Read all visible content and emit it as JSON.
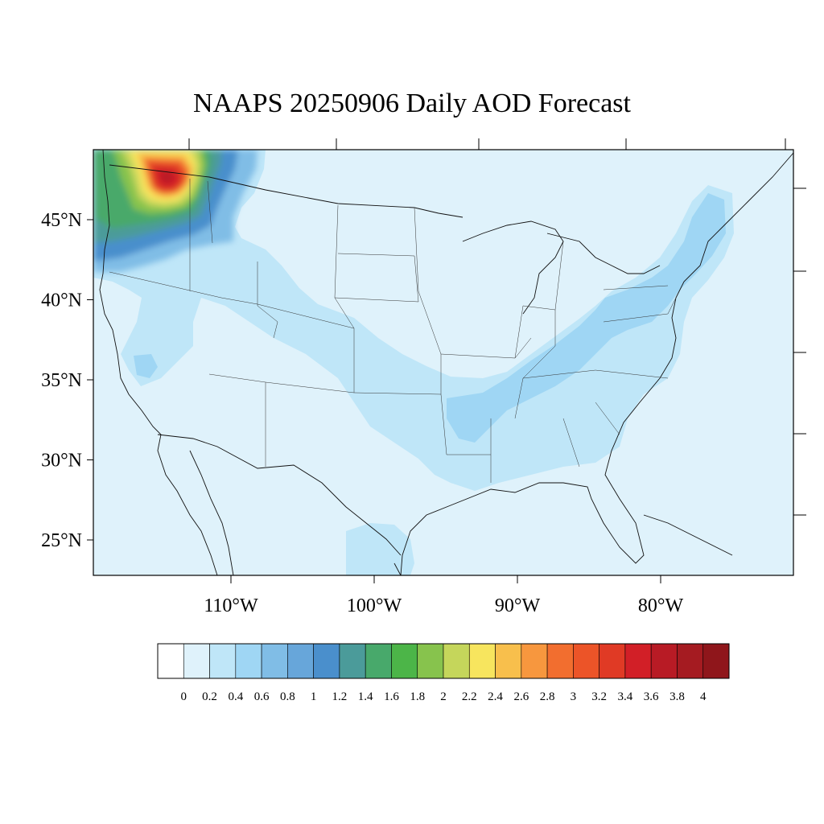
{
  "title": "NAAPS 20250906 Daily AOD Forecast",
  "map": {
    "extent": {
      "lon_min": -125.0,
      "lon_max": -76.0,
      "lat_min": 22.5,
      "lat_max": 49.5
    },
    "background_color": "#dff2fb",
    "lat_ticks": [
      {
        "value": 45,
        "label": "45°N"
      },
      {
        "value": 40,
        "label": "40°N"
      },
      {
        "value": 35,
        "label": "35°N"
      },
      {
        "value": 30,
        "label": "30°N"
      },
      {
        "value": 25,
        "label": "25°N"
      }
    ],
    "lon_ticks": [
      {
        "value": -110,
        "label": "110°W"
      },
      {
        "value": -100,
        "label": "100°W"
      },
      {
        "value": -90,
        "label": "90°W"
      },
      {
        "value": -80,
        "label": "80°W"
      }
    ],
    "smoke_plume_center": {
      "lat": 47.5,
      "lon": -116.5,
      "peak_aod": 3.8
    }
  },
  "colorbar": {
    "labels": [
      "0",
      "0.2",
      "0.4",
      "0.6",
      "0.8",
      "1",
      "1.2",
      "1.4",
      "1.6",
      "1.8",
      "2",
      "2.2",
      "2.4",
      "2.6",
      "2.8",
      "3",
      "3.2",
      "3.4",
      "3.6",
      "3.8",
      "4"
    ],
    "colors": [
      "#ffffff",
      "#dff2fb",
      "#bfe6f8",
      "#9fd6f4",
      "#80bde6",
      "#67a6da",
      "#4a8fcc",
      "#4b9b9a",
      "#48a96b",
      "#4cb548",
      "#87c34d",
      "#c5d65b",
      "#f7e55e",
      "#f8bf4c",
      "#f7973e",
      "#f26e2f",
      "#ec5428",
      "#e03a25",
      "#d21f27",
      "#b81b25",
      "#a51b21",
      "#8f161b"
    ]
  }
}
